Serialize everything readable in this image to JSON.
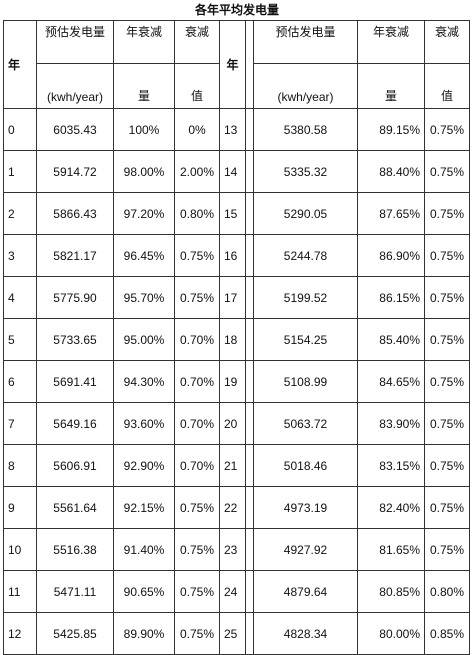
{
  "title": "各年平均发电量",
  "headers": {
    "year": "年",
    "estimated_top": "预估发电量",
    "estimated_unit": "(kwh/year)",
    "decay_amount_top": "年衰减",
    "decay_amount_bottom": "量",
    "decay_value_top": "衰减",
    "decay_value_bottom": "值"
  },
  "left_rows": [
    {
      "year": "0",
      "estimate": "6035.43",
      "decay_amount": "100%",
      "decay_value": "0%"
    },
    {
      "year": "1",
      "estimate": "5914.72",
      "decay_amount": "98.00%",
      "decay_value": "2.00%"
    },
    {
      "year": "2",
      "estimate": "5866.43",
      "decay_amount": "97.20%",
      "decay_value": "0.80%"
    },
    {
      "year": "3",
      "estimate": "5821.17",
      "decay_amount": "96.45%",
      "decay_value": "0.75%"
    },
    {
      "year": "4",
      "estimate": "5775.90",
      "decay_amount": "95.70%",
      "decay_value": "0.75%"
    },
    {
      "year": "5",
      "estimate": "5733.65",
      "decay_amount": "95.00%",
      "decay_value": "0.70%"
    },
    {
      "year": "6",
      "estimate": "5691.41",
      "decay_amount": "94.30%",
      "decay_value": "0.70%"
    },
    {
      "year": "7",
      "estimate": "5649.16",
      "decay_amount": "93.60%",
      "decay_value": "0.70%"
    },
    {
      "year": "8",
      "estimate": "5606.91",
      "decay_amount": "92.90%",
      "decay_value": "0.70%"
    },
    {
      "year": "9",
      "estimate": "5561.64",
      "decay_amount": "92.15%",
      "decay_value": "0.75%"
    },
    {
      "year": "10",
      "estimate": "5516.38",
      "decay_amount": "91.40%",
      "decay_value": "0.75%"
    },
    {
      "year": "11",
      "estimate": "5471.11",
      "decay_amount": "90.65%",
      "decay_value": "0.75%"
    },
    {
      "year": "12",
      "estimate": "5425.85",
      "decay_amount": "89.90%",
      "decay_value": "0.75%"
    }
  ],
  "right_rows": [
    {
      "year": "13",
      "estimate": "5380.58",
      "decay_amount": "89.15%",
      "decay_value": "0.75%"
    },
    {
      "year": "14",
      "estimate": "5335.32",
      "decay_amount": "88.40%",
      "decay_value": "0.75%"
    },
    {
      "year": "15",
      "estimate": "5290.05",
      "decay_amount": "87.65%",
      "decay_value": "0.75%"
    },
    {
      "year": "16",
      "estimate": "5244.78",
      "decay_amount": "86.90%",
      "decay_value": "0.75%"
    },
    {
      "year": "17",
      "estimate": "5199.52",
      "decay_amount": "86.15%",
      "decay_value": "0.75%"
    },
    {
      "year": "18",
      "estimate": "5154.25",
      "decay_amount": "85.40%",
      "decay_value": "0.75%"
    },
    {
      "year": "19",
      "estimate": "5108.99",
      "decay_amount": "84.65%",
      "decay_value": "0.75%"
    },
    {
      "year": "20",
      "estimate": "5063.72",
      "decay_amount": "83.90%",
      "decay_value": "0.75%"
    },
    {
      "year": "21",
      "estimate": "5018.46",
      "decay_amount": "83.15%",
      "decay_value": "0.75%"
    },
    {
      "year": "22",
      "estimate": "4973.19",
      "decay_amount": "82.40%",
      "decay_value": "0.75%"
    },
    {
      "year": "23",
      "estimate": "4927.92",
      "decay_amount": "81.65%",
      "decay_value": "0.75%"
    },
    {
      "year": "24",
      "estimate": "4879.64",
      "decay_amount": "80.85%",
      "decay_value": "0.80%"
    },
    {
      "year": "25",
      "estimate": "4828.34",
      "decay_amount": "80.00%",
      "decay_value": "0.85%"
    }
  ]
}
